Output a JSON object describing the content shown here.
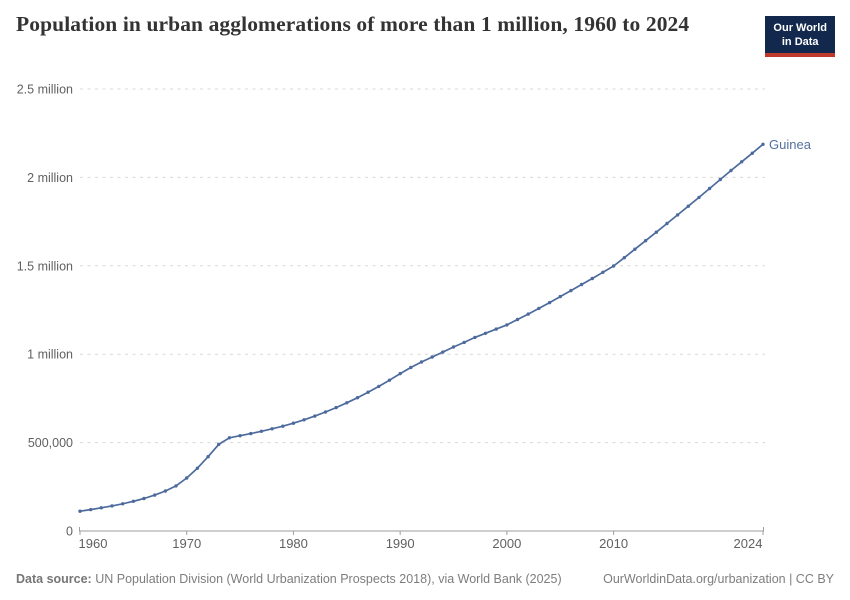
{
  "header": {
    "title": "Population in urban agglomerations of more than 1 million, 1960 to 2024",
    "logo": {
      "line1": "Our World",
      "line2": "in Data"
    }
  },
  "footer": {
    "source_label": "Data source:",
    "source_text": " UN Population Division (World Urbanization Prospects 2018), via World Bank (2025)",
    "right_text": "OurWorldinData.org/urbanization | CC BY"
  },
  "colors": {
    "line": "#4C6A9C",
    "entity_label": "#54719e",
    "grid": "#d8d8d8",
    "axis": "#9e9e9e",
    "tick_label": "#616161",
    "title": "#333333",
    "logo_bg": "#12294d",
    "logo_red": "#c03a2b"
  },
  "chart_data": {
    "type": "line",
    "title": "Population in urban agglomerations of more than 1 million, 1960 to 2024",
    "entity_label": "Guinea",
    "xlabel": "",
    "ylabel": "",
    "grid": "dashed-horizontal",
    "xlim": [
      1960,
      2024
    ],
    "ylim": [
      0,
      2500000
    ],
    "xticks": [
      1960,
      1970,
      1980,
      1990,
      2000,
      2010,
      2024
    ],
    "yticks": [
      {
        "value": 0,
        "label": "0"
      },
      {
        "value": 500000,
        "label": "500,000"
      },
      {
        "value": 1000000,
        "label": "1 million"
      },
      {
        "value": 1500000,
        "label": "1.5 million"
      },
      {
        "value": 2000000,
        "label": "2 million"
      },
      {
        "value": 2500000,
        "label": "2.5 million"
      }
    ],
    "x": [
      1960,
      1961,
      1962,
      1963,
      1964,
      1965,
      1966,
      1967,
      1968,
      1969,
      1970,
      1971,
      1972,
      1973,
      1974,
      1975,
      1976,
      1977,
      1978,
      1979,
      1980,
      1981,
      1982,
      1983,
      1984,
      1985,
      1986,
      1987,
      1988,
      1989,
      1990,
      1991,
      1992,
      1993,
      1994,
      1995,
      1996,
      1997,
      1998,
      1999,
      2000,
      2001,
      2002,
      2003,
      2004,
      2005,
      2006,
      2007,
      2008,
      2009,
      2010,
      2011,
      2012,
      2013,
      2014,
      2015,
      2016,
      2017,
      2018,
      2019,
      2020,
      2021,
      2022,
      2023,
      2024
    ],
    "series": [
      {
        "name": "Guinea",
        "color": "#4C6A9C",
        "values": [
          112000,
          121000,
          131000,
          142000,
          154000,
          168000,
          184000,
          203000,
          226000,
          255000,
          300000,
          355000,
          420000,
          490000,
          527000,
          539000,
          551000,
          564000,
          578000,
          593000,
          610000,
          629000,
          650000,
          673000,
          698000,
          725000,
          754000,
          785000,
          818000,
          853000,
          890000,
          925000,
          956000,
          984000,
          1012000,
          1041000,
          1067000,
          1095000,
          1118000,
          1142000,
          1166000,
          1196000,
          1227000,
          1259000,
          1292000,
          1326000,
          1360000,
          1394000,
          1428000,
          1463000,
          1499000,
          1546000,
          1594000,
          1642000,
          1690000,
          1739000,
          1788000,
          1837000,
          1887000,
          1937000,
          1988000,
          2039000,
          2088000,
          2137000,
          2187000
        ]
      }
    ]
  }
}
